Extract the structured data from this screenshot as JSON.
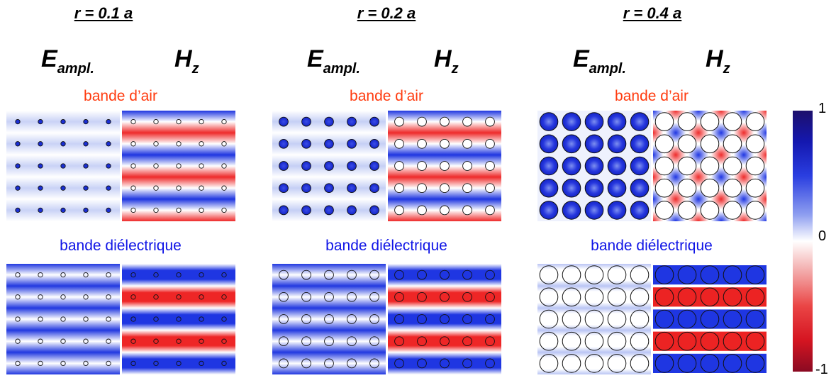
{
  "headers": [
    "r = 0.1 a",
    "r = 0.2 a",
    "r = 0.4 a"
  ],
  "field_labels": {
    "e_main": "E",
    "e_sub": "ampl.",
    "h_main": "H",
    "h_sub": "z"
  },
  "band_labels": {
    "air": "bande d’air",
    "dielectric": "bande diélectrique"
  },
  "colorbar": {
    "max": "1",
    "mid": "0",
    "min": "-1",
    "colors": [
      "#1d0f6b",
      "#1418b0",
      "#ffffff",
      "#ea4545",
      "#8a0a22"
    ]
  },
  "grid": {
    "rows": 5,
    "cols": 5
  },
  "columns": [
    {
      "r": 0.1,
      "air": {
        "E": "E-air-weak",
        "Hz": "Hz-air-stripes"
      },
      "dielectric": {
        "E": "E-diel-stripes",
        "Hz": "Hz-diel-stripes"
      }
    },
    {
      "r": 0.2,
      "air": {
        "E": "E-air-dots",
        "Hz": "Hz-air-stripes"
      },
      "dielectric": {
        "E": "E-diel-stripes",
        "Hz": "Hz-diel-stripes"
      }
    },
    {
      "r": 0.4,
      "air": {
        "E": "E-air-strong",
        "Hz": "Hz-air-checker"
      },
      "dielectric": {
        "E": "E-diel-pale",
        "Hz": "Hz-diel-rows"
      }
    }
  ]
}
